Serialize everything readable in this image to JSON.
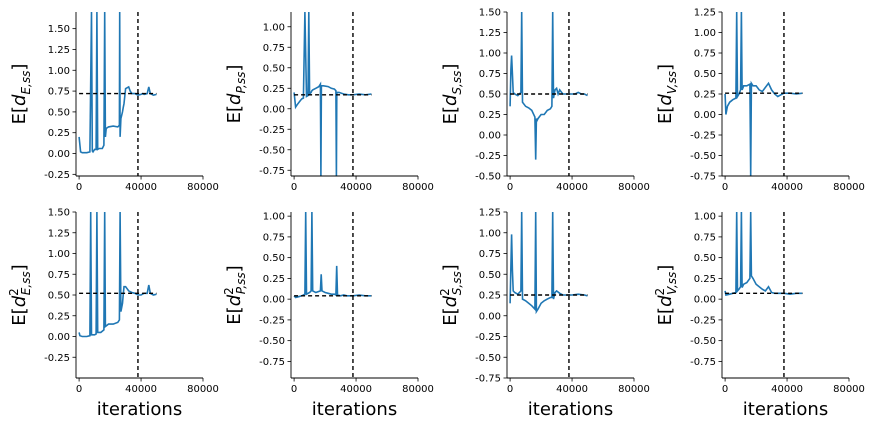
{
  "chart_data": [
    {
      "type": "line",
      "ylabel_main": "d",
      "ylabel_sup": "",
      "ylabel_sub": "E,ss",
      "xlabel": "",
      "xlim": [
        -2000,
        80000
      ],
      "ylim": [
        -0.27,
        1.7
      ],
      "yticks": [
        "-0.25",
        "0.00",
        "0.25",
        "0.50",
        "0.75",
        "1.00",
        "1.25",
        "1.50"
      ],
      "xticks": [
        "0",
        "40000",
        "80000"
      ],
      "series_color": "#1f77b4",
      "reference_line": {
        "y": 0.72,
        "x_end": 50000
      },
      "vertical_line": {
        "x": 38000
      },
      "x": [
        0,
        1000,
        2000,
        5000,
        7000,
        8000,
        8500,
        9000,
        10000,
        11000,
        11500,
        12000,
        13000,
        15000,
        16000,
        16500,
        17000,
        17500,
        19000,
        22000,
        25000,
        26000,
        26200,
        26500,
        27000,
        28000,
        28500,
        29000,
        30000,
        32000,
        33000,
        34000,
        36000,
        38000,
        40000,
        41000,
        42000,
        44000,
        45000,
        46000,
        48000,
        50000
      ],
      "y": [
        0.2,
        0.02,
        0.01,
        0.01,
        0.02,
        1.7,
        0.03,
        0.02,
        0.05,
        0.05,
        1.7,
        0.05,
        0.06,
        0.06,
        0.1,
        1.7,
        0.2,
        0.3,
        0.32,
        0.33,
        0.32,
        0.34,
        1.7,
        0.2,
        0.42,
        0.5,
        0.55,
        0.6,
        0.78,
        0.8,
        0.75,
        0.72,
        0.72,
        0.7,
        0.71,
        0.72,
        0.71,
        0.72,
        0.8,
        0.72,
        0.7,
        0.71
      ]
    },
    {
      "type": "line",
      "ylabel_main": "d",
      "ylabel_sup": "",
      "ylabel_sub": "P,ss",
      "xlabel": "",
      "xlim": [
        -2000,
        80000
      ],
      "ylim": [
        -0.82,
        1.18
      ],
      "yticks": [
        "-0.75",
        "-0.50",
        "-0.25",
        "0.00",
        "0.25",
        "0.50",
        "0.75",
        "1.00"
      ],
      "xticks": [
        "0",
        "40000",
        "80000"
      ],
      "series_color": "#1f77b4",
      "reference_line": {
        "y": 0.17,
        "x_end": 50000
      },
      "vertical_line": {
        "x": 38000
      },
      "x": [
        0,
        1000,
        2000,
        4000,
        5000,
        6000,
        7000,
        8000,
        9000,
        9500,
        10000,
        11000,
        11500,
        12000,
        14000,
        16000,
        17000,
        17300,
        17600,
        19000,
        22000,
        24000,
        26000,
        27000,
        27300,
        27600,
        29000,
        32000,
        35000,
        38000,
        42000,
        46000,
        50000
      ],
      "y": [
        0.2,
        0.02,
        0.05,
        0.1,
        0.12,
        0.13,
        1.18,
        0.15,
        0.16,
        1.18,
        0.18,
        0.2,
        0.22,
        0.23,
        0.25,
        0.27,
        0.3,
        -0.82,
        0.28,
        0.28,
        0.27,
        0.25,
        0.24,
        0.22,
        -0.82,
        0.2,
        0.2,
        0.18,
        0.17,
        0.17,
        0.18,
        0.17,
        0.18
      ]
    },
    {
      "type": "line",
      "ylabel_main": "d",
      "ylabel_sup": "",
      "ylabel_sub": "S,ss",
      "xlabel": "",
      "xlim": [
        -2000,
        80000
      ],
      "ylim": [
        -0.5,
        1.5
      ],
      "yticks": [
        "-0.50",
        "-0.25",
        "0.00",
        "0.25",
        "0.50",
        "0.75",
        "1.00",
        "1.25",
        "1.50"
      ],
      "xticks": [
        "0",
        "40000",
        "80000"
      ],
      "series_color": "#1f77b4",
      "reference_line": {
        "y": 0.5,
        "x_end": 50000
      },
      "vertical_line": {
        "x": 38000
      },
      "x": [
        0,
        500,
        1000,
        1500,
        2000,
        3000,
        5000,
        7000,
        7500,
        8000,
        10000,
        12000,
        14000,
        16000,
        16500,
        17000,
        17500,
        18000,
        20000,
        22000,
        24000,
        26000,
        27000,
        27500,
        28000,
        29000,
        30000,
        31000,
        32000,
        34000,
        36000,
        38000,
        40000,
        42000,
        44000,
        46000,
        48000,
        50000
      ],
      "y": [
        0.35,
        0.8,
        0.97,
        0.75,
        0.52,
        0.5,
        0.48,
        0.52,
        1.5,
        0.4,
        0.35,
        0.33,
        0.3,
        0.22,
        -0.3,
        0.2,
        0.18,
        0.2,
        0.25,
        0.25,
        0.3,
        0.32,
        0.35,
        1.5,
        0.45,
        0.55,
        0.57,
        0.5,
        0.55,
        0.5,
        0.5,
        0.5,
        0.5,
        0.5,
        0.52,
        0.5,
        0.5,
        0.48
      ]
    },
    {
      "type": "line",
      "ylabel_main": "d",
      "ylabel_sup": "",
      "ylabel_sub": "V,ss",
      "xlabel": "",
      "xlim": [
        -2000,
        80000
      ],
      "ylim": [
        -0.75,
        1.25
      ],
      "yticks": [
        "-0.75",
        "-0.50",
        "-0.25",
        "0.00",
        "0.25",
        "0.50",
        "0.75",
        "1.00",
        "1.25"
      ],
      "xticks": [
        "0",
        "40000",
        "80000"
      ],
      "series_color": "#1f77b4",
      "reference_line": {
        "y": 0.26,
        "x_end": 50000
      },
      "vertical_line": {
        "x": 38000
      },
      "x": [
        0,
        500,
        1500,
        3000,
        5000,
        7000,
        7500,
        8000,
        9000,
        10000,
        10500,
        11000,
        12000,
        14000,
        16000,
        16500,
        17000,
        18000,
        20000,
        22000,
        24000,
        26000,
        28000,
        30000,
        32000,
        34000,
        36000,
        38000,
        42000,
        46000,
        50000
      ],
      "y": [
        0.25,
        0.0,
        0.1,
        0.15,
        0.18,
        0.2,
        1.25,
        0.22,
        0.25,
        0.3,
        1.25,
        0.3,
        0.35,
        0.35,
        0.37,
        -0.75,
        0.38,
        0.35,
        0.35,
        0.3,
        0.28,
        0.33,
        0.38,
        0.3,
        0.25,
        0.22,
        0.24,
        0.26,
        0.26,
        0.25,
        0.26
      ]
    },
    {
      "type": "line",
      "ylabel_main": "d",
      "ylabel_sup": "2",
      "ylabel_sub": "E,ss",
      "xlabel": "iterations",
      "xlim": [
        -2000,
        80000
      ],
      "ylim": [
        -0.5,
        1.5
      ],
      "yticks": [
        "-0.25",
        "0.00",
        "0.25",
        "0.50",
        "0.75",
        "1.00",
        "1.25",
        "1.50"
      ],
      "xticks": [
        "0",
        "40000",
        "80000"
      ],
      "series_color": "#1f77b4",
      "reference_line": {
        "y": 0.52,
        "x_end": 50000
      },
      "vertical_line": {
        "x": 38000
      },
      "x": [
        0,
        500,
        2000,
        5000,
        7000,
        7500,
        8000,
        10000,
        11000,
        11500,
        12000,
        14000,
        16000,
        16500,
        17000,
        19000,
        22000,
        25000,
        26000,
        26500,
        27000,
        28000,
        28500,
        29000,
        30000,
        32000,
        34000,
        36000,
        38000,
        40000,
        42000,
        44000,
        45000,
        46000,
        48000,
        50000
      ],
      "y": [
        0.05,
        0.01,
        0.0,
        0.0,
        0.01,
        1.5,
        0.02,
        0.02,
        0.03,
        1.5,
        0.05,
        0.05,
        0.08,
        1.5,
        0.12,
        0.15,
        0.15,
        0.17,
        0.2,
        1.5,
        0.3,
        0.4,
        0.5,
        0.6,
        0.6,
        0.55,
        0.53,
        0.52,
        0.5,
        0.5,
        0.52,
        0.52,
        0.62,
        0.52,
        0.5,
        0.51
      ]
    },
    {
      "type": "line",
      "ylabel_main": "d",
      "ylabel_sup": "2",
      "ylabel_sub": "P,ss",
      "xlabel": "iterations",
      "xlim": [
        -2000,
        80000
      ],
      "ylim": [
        -0.95,
        1.05
      ],
      "yticks": [
        "-0.75",
        "-0.50",
        "-0.25",
        "0.00",
        "0.25",
        "0.50",
        "0.75",
        "1.00"
      ],
      "xticks": [
        "0",
        "40000",
        "80000"
      ],
      "series_color": "#1f77b4",
      "reference_line": {
        "y": 0.04,
        "x_end": 50000
      },
      "vertical_line": {
        "x": 38000
      },
      "x": [
        0,
        1000,
        3000,
        5000,
        6000,
        7000,
        7500,
        8000,
        10000,
        11000,
        11500,
        12000,
        14000,
        17000,
        17500,
        18000,
        20000,
        22000,
        24000,
        26000,
        27000,
        27500,
        28000,
        30000,
        32000,
        34000,
        38000,
        42000,
        46000,
        50000
      ],
      "y": [
        0.04,
        0.02,
        0.03,
        0.04,
        0.05,
        0.06,
        1.05,
        0.06,
        0.08,
        0.1,
        1.05,
        0.1,
        0.08,
        0.1,
        0.3,
        0.1,
        0.08,
        0.07,
        0.06,
        0.06,
        0.05,
        0.4,
        0.05,
        0.04,
        0.05,
        0.04,
        0.04,
        0.05,
        0.04,
        0.04
      ]
    },
    {
      "type": "line",
      "ylabel_main": "d",
      "ylabel_sup": "2",
      "ylabel_sub": "S,ss",
      "xlabel": "iterations",
      "xlim": [
        -2000,
        80000
      ],
      "ylim": [
        -0.75,
        1.25
      ],
      "yticks": [
        "-0.75",
        "-0.50",
        "-0.25",
        "0.00",
        "0.25",
        "0.50",
        "0.75",
        "1.00",
        "1.25"
      ],
      "xticks": [
        "0",
        "40000",
        "80000"
      ],
      "series_color": "#1f77b4",
      "reference_line": {
        "y": 0.25,
        "x_end": 50000
      },
      "vertical_line": {
        "x": 38000
      },
      "x": [
        0,
        500,
        1000,
        1500,
        2000,
        3000,
        5000,
        7000,
        7500,
        8000,
        10000,
        12000,
        14000,
        16000,
        16500,
        17000,
        18000,
        20000,
        22000,
        24000,
        26000,
        27000,
        27500,
        28000,
        29000,
        30000,
        32000,
        34000,
        36000,
        38000,
        40000,
        44000,
        48000,
        50000
      ],
      "y": [
        0.15,
        0.6,
        0.98,
        0.55,
        0.3,
        0.28,
        0.26,
        0.3,
        1.25,
        0.2,
        0.18,
        0.15,
        0.12,
        0.08,
        1.25,
        0.05,
        0.08,
        0.15,
        0.18,
        0.2,
        0.22,
        0.22,
        1.25,
        0.2,
        0.28,
        0.3,
        0.27,
        0.25,
        0.25,
        0.25,
        0.25,
        0.26,
        0.25,
        0.24
      ]
    },
    {
      "type": "line",
      "ylabel_main": "d",
      "ylabel_sup": "2",
      "ylabel_sub": "V,ss",
      "xlabel": "iterations",
      "xlim": [
        -2000,
        80000
      ],
      "ylim": [
        -0.95,
        1.05
      ],
      "yticks": [
        "-0.75",
        "-0.50",
        "-0.25",
        "0.00",
        "0.25",
        "0.50",
        "0.75",
        "1.00"
      ],
      "xticks": [
        "0",
        "40000",
        "80000"
      ],
      "series_color": "#1f77b4",
      "reference_line": {
        "y": 0.07,
        "x_end": 50000
      },
      "vertical_line": {
        "x": 38000
      },
      "x": [
        0,
        500,
        3000,
        5000,
        7000,
        7500,
        8000,
        9000,
        10000,
        10500,
        11000,
        12000,
        14000,
        16000,
        16500,
        17000,
        18000,
        20000,
        22000,
        24000,
        26000,
        28000,
        30000,
        32000,
        34000,
        38000,
        42000,
        46000,
        50000
      ],
      "y": [
        0.1,
        0.05,
        0.06,
        0.07,
        0.08,
        1.05,
        0.1,
        0.12,
        0.15,
        1.05,
        0.14,
        0.18,
        0.2,
        0.25,
        1.05,
        0.28,
        0.25,
        0.18,
        0.15,
        0.12,
        0.1,
        0.15,
        0.08,
        0.07,
        0.07,
        0.07,
        0.06,
        0.07,
        0.07
      ]
    }
  ]
}
